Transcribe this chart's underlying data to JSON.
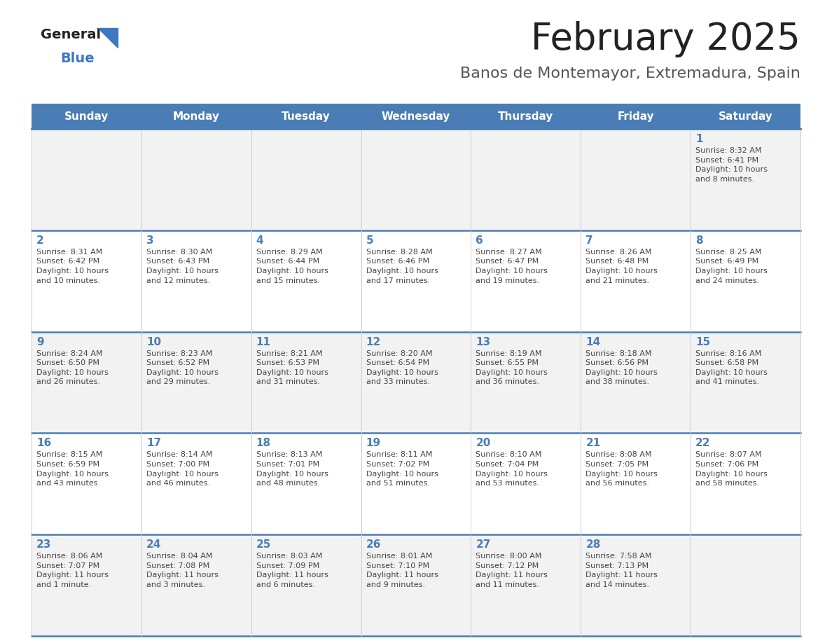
{
  "title": "February 2025",
  "subtitle": "Banos de Montemayor, Extremadura, Spain",
  "days_of_week": [
    "Sunday",
    "Monday",
    "Tuesday",
    "Wednesday",
    "Thursday",
    "Friday",
    "Saturday"
  ],
  "header_bg": "#4A7DB5",
  "header_text_color": "#FFFFFF",
  "cell_bg_odd": "#F2F2F2",
  "cell_bg_even": "#FFFFFF",
  "border_color": "#4A7DB5",
  "day_number_color": "#4A7DB5",
  "text_color": "#444444",
  "title_color": "#222222",
  "subtitle_color": "#555555",
  "logo_general_color": "#222222",
  "logo_blue_color": "#3B79C3",
  "calendar": [
    [
      null,
      null,
      null,
      null,
      null,
      null,
      1
    ],
    [
      2,
      3,
      4,
      5,
      6,
      7,
      8
    ],
    [
      9,
      10,
      11,
      12,
      13,
      14,
      15
    ],
    [
      16,
      17,
      18,
      19,
      20,
      21,
      22
    ],
    [
      23,
      24,
      25,
      26,
      27,
      28,
      null
    ]
  ],
  "cell_data": {
    "1": {
      "sunrise": "8:32 AM",
      "sunset": "6:41 PM",
      "daylight": "10 hours\nand 8 minutes."
    },
    "2": {
      "sunrise": "8:31 AM",
      "sunset": "6:42 PM",
      "daylight": "10 hours\nand 10 minutes."
    },
    "3": {
      "sunrise": "8:30 AM",
      "sunset": "6:43 PM",
      "daylight": "10 hours\nand 12 minutes."
    },
    "4": {
      "sunrise": "8:29 AM",
      "sunset": "6:44 PM",
      "daylight": "10 hours\nand 15 minutes."
    },
    "5": {
      "sunrise": "8:28 AM",
      "sunset": "6:46 PM",
      "daylight": "10 hours\nand 17 minutes."
    },
    "6": {
      "sunrise": "8:27 AM",
      "sunset": "6:47 PM",
      "daylight": "10 hours\nand 19 minutes."
    },
    "7": {
      "sunrise": "8:26 AM",
      "sunset": "6:48 PM",
      "daylight": "10 hours\nand 21 minutes."
    },
    "8": {
      "sunrise": "8:25 AM",
      "sunset": "6:49 PM",
      "daylight": "10 hours\nand 24 minutes."
    },
    "9": {
      "sunrise": "8:24 AM",
      "sunset": "6:50 PM",
      "daylight": "10 hours\nand 26 minutes."
    },
    "10": {
      "sunrise": "8:23 AM",
      "sunset": "6:52 PM",
      "daylight": "10 hours\nand 29 minutes."
    },
    "11": {
      "sunrise": "8:21 AM",
      "sunset": "6:53 PM",
      "daylight": "10 hours\nand 31 minutes."
    },
    "12": {
      "sunrise": "8:20 AM",
      "sunset": "6:54 PM",
      "daylight": "10 hours\nand 33 minutes."
    },
    "13": {
      "sunrise": "8:19 AM",
      "sunset": "6:55 PM",
      "daylight": "10 hours\nand 36 minutes."
    },
    "14": {
      "sunrise": "8:18 AM",
      "sunset": "6:56 PM",
      "daylight": "10 hours\nand 38 minutes."
    },
    "15": {
      "sunrise": "8:16 AM",
      "sunset": "6:58 PM",
      "daylight": "10 hours\nand 41 minutes."
    },
    "16": {
      "sunrise": "8:15 AM",
      "sunset": "6:59 PM",
      "daylight": "10 hours\nand 43 minutes."
    },
    "17": {
      "sunrise": "8:14 AM",
      "sunset": "7:00 PM",
      "daylight": "10 hours\nand 46 minutes."
    },
    "18": {
      "sunrise": "8:13 AM",
      "sunset": "7:01 PM",
      "daylight": "10 hours\nand 48 minutes."
    },
    "19": {
      "sunrise": "8:11 AM",
      "sunset": "7:02 PM",
      "daylight": "10 hours\nand 51 minutes."
    },
    "20": {
      "sunrise": "8:10 AM",
      "sunset": "7:04 PM",
      "daylight": "10 hours\nand 53 minutes."
    },
    "21": {
      "sunrise": "8:08 AM",
      "sunset": "7:05 PM",
      "daylight": "10 hours\nand 56 minutes."
    },
    "22": {
      "sunrise": "8:07 AM",
      "sunset": "7:06 PM",
      "daylight": "10 hours\nand 58 minutes."
    },
    "23": {
      "sunrise": "8:06 AM",
      "sunset": "7:07 PM",
      "daylight": "11 hours\nand 1 minute."
    },
    "24": {
      "sunrise": "8:04 AM",
      "sunset": "7:08 PM",
      "daylight": "11 hours\nand 3 minutes."
    },
    "25": {
      "sunrise": "8:03 AM",
      "sunset": "7:09 PM",
      "daylight": "11 hours\nand 6 minutes."
    },
    "26": {
      "sunrise": "8:01 AM",
      "sunset": "7:10 PM",
      "daylight": "11 hours\nand 9 minutes."
    },
    "27": {
      "sunrise": "8:00 AM",
      "sunset": "7:12 PM",
      "daylight": "11 hours\nand 11 minutes."
    },
    "28": {
      "sunrise": "7:58 AM",
      "sunset": "7:13 PM",
      "daylight": "11 hours\nand 14 minutes."
    }
  }
}
